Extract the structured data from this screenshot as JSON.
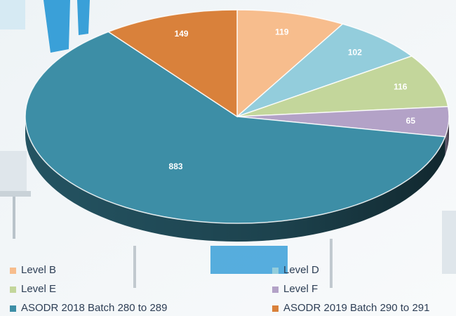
{
  "chart_data": {
    "type": "pie",
    "title": "",
    "three_d": true,
    "start_angle_deg": 0,
    "direction": "clockwise",
    "slices": [
      {
        "label": "Level B",
        "value": 119,
        "color": "#f7bd8d"
      },
      {
        "label": "Level D",
        "value": 102,
        "color": "#93cddc"
      },
      {
        "label": "Level E",
        "value": 116,
        "color": "#c3d69b"
      },
      {
        "label": "Level F",
        "value": 65,
        "color": "#b3a2c7"
      },
      {
        "label": "ASODR 2018 Batch 280 to 289",
        "value": 883,
        "color": "#3d8ea6"
      },
      {
        "label": "ASODR 2019 Batch 290 to 291",
        "value": 149,
        "color": "#d9813b"
      }
    ],
    "data_labels_shown": true,
    "legend_position": "bottom",
    "legend_columns": 2
  },
  "background": {
    "scene": "classroom photo (blurred)",
    "accent_color": "#3aa0d8"
  }
}
